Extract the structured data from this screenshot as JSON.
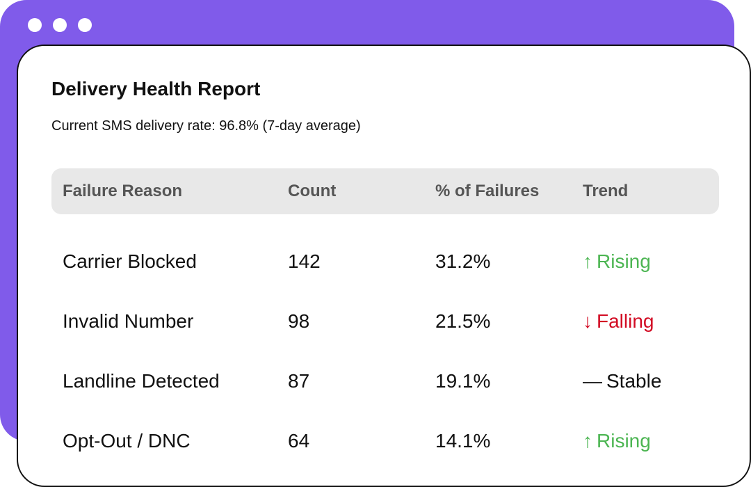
{
  "report": {
    "title": "Delivery Health Report",
    "subtitle": "Current SMS delivery rate: 96.8% (7-day average)"
  },
  "table": {
    "headers": [
      "Failure Reason",
      "Count",
      "% of Failures",
      "Trend"
    ],
    "rows": [
      {
        "reason": "Carrier Blocked",
        "count": "142",
        "percent": "31.2%",
        "trend_symbol": "↑",
        "trend_label": "Rising",
        "trend_color": "#4cb552"
      },
      {
        "reason": "Invalid Number",
        "count": "98",
        "percent": "21.5%",
        "trend_symbol": "↓",
        "trend_label": "Falling",
        "trend_color": "#d20c24"
      },
      {
        "reason": "Landline Detected",
        "count": "87",
        "percent": "19.1%",
        "trend_symbol": "—",
        "trend_label": "Stable",
        "trend_color": "#111111"
      },
      {
        "reason": "Opt-Out / DNC",
        "count": "64",
        "percent": "14.1%",
        "trend_symbol": "↑",
        "trend_label": "Rising",
        "trend_color": "#4cb552"
      }
    ]
  },
  "colors": {
    "accent": "#805bea",
    "header_bg": "#e8e8e8",
    "rising": "#4cb552",
    "falling": "#d20c24",
    "stable": "#111111"
  }
}
